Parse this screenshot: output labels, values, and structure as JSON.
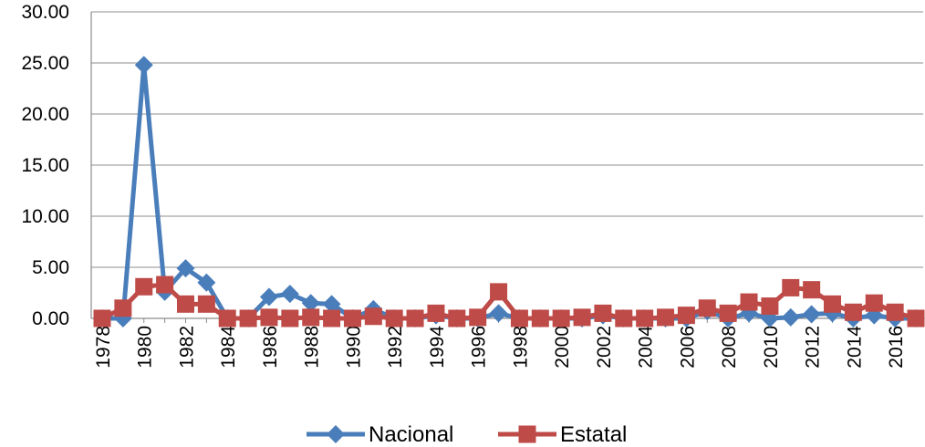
{
  "chart_data": {
    "type": "line",
    "title": "",
    "xlabel": "",
    "ylabel": "",
    "ylim": [
      0,
      30
    ],
    "y_ticks": [
      "0.00",
      "5.00",
      "10.00",
      "15.00",
      "20.00",
      "25.00",
      "30.00"
    ],
    "x": [
      1978,
      1979,
      1980,
      1981,
      1982,
      1983,
      1984,
      1985,
      1986,
      1987,
      1988,
      1989,
      1990,
      1991,
      1992,
      1993,
      1994,
      1995,
      1996,
      1997,
      1998,
      1999,
      2000,
      2001,
      2002,
      2003,
      2004,
      2005,
      2006,
      2007,
      2008,
      2009,
      2010,
      2011,
      2012,
      2013,
      2014,
      2015,
      2016,
      2017
    ],
    "x_tick_labels": [
      "1978",
      "1980",
      "1982",
      "1984",
      "1986",
      "1988",
      "1990",
      "1992",
      "1994",
      "1996",
      "1998",
      "2000",
      "2002",
      "2004",
      "2006",
      "2008",
      "2010",
      "2012",
      "2014",
      "2016"
    ],
    "grid": true,
    "legend_position": "bottom",
    "series": [
      {
        "name": "Nacional",
        "color": "#4a7ebb",
        "marker": "diamond",
        "values": [
          0,
          0,
          24.8,
          2.6,
          4.9,
          3.5,
          0,
          0,
          2.1,
          2.4,
          1.5,
          1.4,
          0,
          0.9,
          0,
          0,
          0.3,
          0,
          0,
          0.5,
          0,
          0,
          0,
          0,
          0.3,
          0,
          0,
          0,
          0,
          0.7,
          0,
          0.5,
          0,
          0.1,
          0.4,
          0.5,
          0,
          0.3,
          0,
          0
        ]
      },
      {
        "name": "Estatal",
        "color": "#be4b48",
        "marker": "square",
        "values": [
          0,
          1.0,
          3.1,
          3.3,
          1.4,
          1.4,
          0,
          0,
          0.1,
          0,
          0.1,
          0,
          0,
          0.2,
          0,
          0,
          0.5,
          0,
          0.1,
          2.6,
          0,
          0,
          0,
          0.1,
          0.5,
          0,
          0,
          0.1,
          0.3,
          1.0,
          0.5,
          1.6,
          1.2,
          3.0,
          2.8,
          1.4,
          0.6,
          1.5,
          0.6,
          0
        ]
      }
    ]
  }
}
